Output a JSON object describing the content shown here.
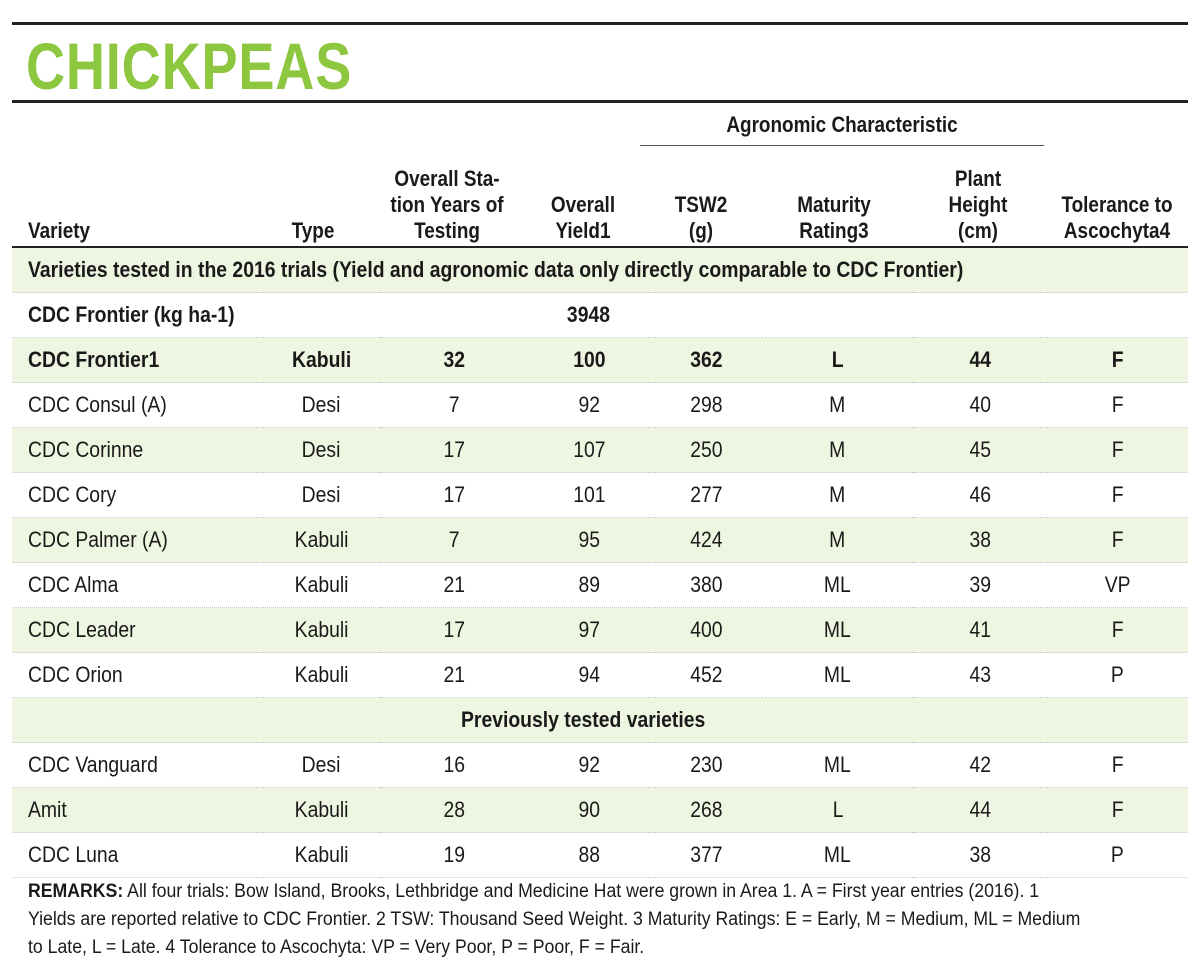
{
  "title": "CHICKPEAS",
  "group_header": "Agronomic Characteristic",
  "columns": [
    {
      "key": "variety",
      "label": "Variety"
    },
    {
      "key": "type",
      "label": "Type"
    },
    {
      "key": "years",
      "label": "Overall Sta-\ntion Years of\nTesting"
    },
    {
      "key": "yield",
      "label": "Overall\nYield1"
    },
    {
      "key": "tsw",
      "label": "TSW2\n(g)"
    },
    {
      "key": "maturity",
      "label": "Maturity\nRating3"
    },
    {
      "key": "height",
      "label": "Plant\nHeight\n(cm)"
    },
    {
      "key": "tolerance",
      "label": "Tolerance to\nAscochyta4"
    }
  ],
  "section_2016": "Varieties tested in the 2016 trials (Yield and agronomic data only directly comparable to CDC Frontier)",
  "reference_row": {
    "label": "CDC Frontier (kg ha-1)",
    "yield": "3948"
  },
  "rows_2016": [
    {
      "variety": "CDC Frontier1",
      "type": "Kabuli",
      "years": "32",
      "yield": "100",
      "tsw": "362",
      "maturity": "L",
      "height": "44",
      "tolerance": "F"
    },
    {
      "variety": "CDC Consul (A)",
      "type": "Desi",
      "years": "7",
      "yield": "92",
      "tsw": "298",
      "maturity": "M",
      "height": "40",
      "tolerance": "F"
    },
    {
      "variety": "CDC Corinne",
      "type": "Desi",
      "years": "17",
      "yield": "107",
      "tsw": "250",
      "maturity": "M",
      "height": "45",
      "tolerance": "F"
    },
    {
      "variety": "CDC Cory",
      "type": "Desi",
      "years": "17",
      "yield": "101",
      "tsw": "277",
      "maturity": "M",
      "height": "46",
      "tolerance": "F"
    },
    {
      "variety": "CDC Palmer (A)",
      "type": "Kabuli",
      "years": "7",
      "yield": "95",
      "tsw": "424",
      "maturity": "M",
      "height": "38",
      "tolerance": "F"
    },
    {
      "variety": "CDC Alma",
      "type": "Kabuli",
      "years": "21",
      "yield": "89",
      "tsw": "380",
      "maturity": "ML",
      "height": "39",
      "tolerance": "VP"
    },
    {
      "variety": "CDC Leader",
      "type": "Kabuli",
      "years": "17",
      "yield": "97",
      "tsw": "400",
      "maturity": "ML",
      "height": "41",
      "tolerance": "F"
    },
    {
      "variety": "CDC Orion",
      "type": "Kabuli",
      "years": "21",
      "yield": "94",
      "tsw": "452",
      "maturity": "ML",
      "height": "43",
      "tolerance": "P"
    }
  ],
  "section_previous": "Previously tested varieties",
  "rows_previous": [
    {
      "variety": "CDC Vanguard",
      "type": "Desi",
      "years": "16",
      "yield": "92",
      "tsw": "230",
      "maturity": "ML",
      "height": "42",
      "tolerance": "F"
    },
    {
      "variety": "Amit",
      "type": "Kabuli",
      "years": "28",
      "yield": "90",
      "tsw": "268",
      "maturity": "L",
      "height": "44",
      "tolerance": "F"
    },
    {
      "variety": "CDC Luna",
      "type": "Kabuli",
      "years": "19",
      "yield": "88",
      "tsw": "377",
      "maturity": "ML",
      "height": "38",
      "tolerance": "P"
    }
  ],
  "remarks_label": "REMARKS:",
  "remarks_text": " All four trials: Bow Island, Brooks, Lethbridge and Medicine Hat were grown in Area 1. A = First year entries (2016). 1 Yields are reported relative to CDC Frontier. 2 TSW: Thousand Seed Weight. 3 Maturity Ratings: E = Early, M = Medium, ML = Medium to Late, L = Late. 4 Tolerance to Ascochyta: VP = Very Poor, P = Poor, F = Fair.",
  "colors": {
    "title": "#8dc63f",
    "shade": "#eef5e0",
    "rule": "#222222"
  }
}
